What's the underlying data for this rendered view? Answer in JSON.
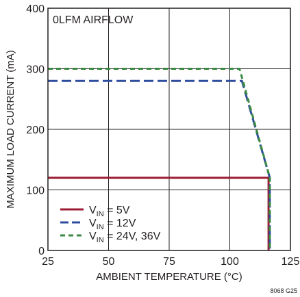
{
  "chart_data": {
    "type": "line",
    "title": "",
    "xlabel": "AMBIENT TEMPERATURE (°C)",
    "ylabel": "MAXIMUM LOAD CURRENT (mA)",
    "xlim": [
      25,
      125
    ],
    "ylim": [
      0,
      400
    ],
    "x_ticks": [
      25,
      50,
      75,
      100,
      125
    ],
    "y_ticks": [
      0,
      100,
      200,
      300,
      400
    ],
    "grid": true,
    "annotation": "0LFM AIRFLOW",
    "legend_position": "bottom-left",
    "figure_code": "8068 G25",
    "series": [
      {
        "name": "V_IN = 5V",
        "label_main": "V",
        "label_sub": "IN",
        "label_rest": " = 5V",
        "color": "#9b1b30",
        "dash": "solid",
        "x": [
          25,
          116,
          116
        ],
        "y": [
          120,
          120,
          0
        ]
      },
      {
        "name": "V_IN = 12V",
        "label_main": "V",
        "label_sub": "IN",
        "label_rest": " = 12V",
        "color": "#2e4d9e",
        "dash": "long-dash",
        "x": [
          25,
          105,
          116.5,
          116.5
        ],
        "y": [
          280,
          280,
          120,
          0
        ]
      },
      {
        "name": "V_IN = 24V, 36V",
        "label_main": "V",
        "label_sub": "IN",
        "label_rest": " = 24V, 36V",
        "color": "#3a8a43",
        "dash": "short-dash",
        "x": [
          25,
          104,
          116.5,
          116.5
        ],
        "y": [
          300,
          300,
          120,
          0
        ]
      }
    ]
  }
}
